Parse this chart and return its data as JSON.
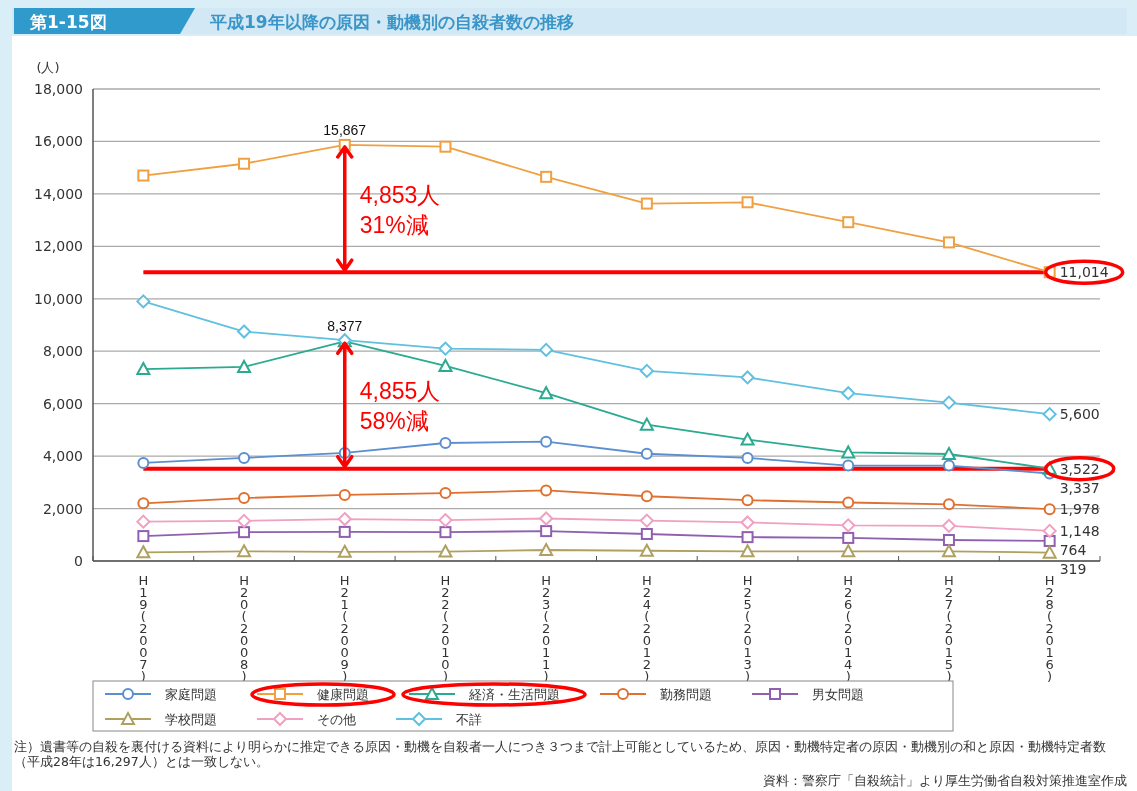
{
  "chart_data": {
    "type": "line",
    "title": "平成19年以降の原因・動機別の自殺者数の推移",
    "ylabel": "(人)",
    "categories": [
      "H19(2007)",
      "H20(2008)",
      "H21(2009)",
      "H22(2010)",
      "H23(2011)",
      "H24(2012)",
      "H25(2013)",
      "H26(2014)",
      "H27(2015)",
      "H28(2016)"
    ],
    "ylim": [
      0,
      18000
    ],
    "yticks": [
      {
        "value": 0,
        "label": "0"
      },
      {
        "value": 2000,
        "label": "2,000"
      },
      {
        "value": 4000,
        "label": "4,000"
      },
      {
        "value": 6000,
        "label": "6,000"
      },
      {
        "value": 8000,
        "label": "8,000"
      },
      {
        "value": 10000,
        "label": "10,000"
      },
      {
        "value": 12000,
        "label": "12,000"
      },
      {
        "value": 14000,
        "label": "14,000"
      },
      {
        "value": 16000,
        "label": "16,000"
      },
      {
        "value": 18000,
        "label": "18,000"
      }
    ],
    "grid": "y",
    "legend": "bottom",
    "line_style": "solid",
    "series": [
      {
        "name": "家庭問題",
        "color": "#5b8fd0",
        "marker": "circle",
        "values": [
          3740,
          3930,
          4120,
          4500,
          4550,
          4090,
          3930,
          3640,
          3640,
          3337
        ],
        "value_labels": [
          null,
          null,
          null,
          null,
          null,
          null,
          null,
          null,
          null,
          "3,337"
        ]
      },
      {
        "name": "健康問題",
        "color": "#f0a040",
        "marker": "square",
        "values": [
          14700,
          15150,
          15867,
          15800,
          14650,
          13630,
          13680,
          12920,
          12150,
          11014
        ],
        "value_labels": [
          null,
          null,
          "15,867",
          null,
          null,
          null,
          null,
          null,
          null,
          "11,014"
        ]
      },
      {
        "name": "経済・生活問題",
        "color": "#2aaa90",
        "marker": "triangle",
        "values": [
          7320,
          7400,
          8377,
          7440,
          6400,
          5200,
          4630,
          4140,
          4080,
          3522
        ],
        "value_labels": [
          null,
          null,
          "8,377",
          null,
          null,
          null,
          null,
          null,
          null,
          "3,522"
        ]
      },
      {
        "name": "勤務問題",
        "color": "#e07030",
        "marker": "circle",
        "values": [
          2200,
          2400,
          2520,
          2590,
          2690,
          2470,
          2320,
          2230,
          2160,
          1978
        ],
        "value_labels": [
          null,
          null,
          null,
          null,
          null,
          null,
          null,
          null,
          null,
          "1,978"
        ]
      },
      {
        "name": "男女問題",
        "color": "#9060b0",
        "marker": "square",
        "values": [
          950,
          1100,
          1110,
          1100,
          1140,
          1030,
          910,
          880,
          800,
          764
        ],
        "value_labels": [
          null,
          null,
          null,
          null,
          null,
          null,
          null,
          null,
          null,
          "764"
        ]
      },
      {
        "name": "学校問題",
        "color": "#b0a060",
        "marker": "triangle",
        "values": [
          330,
          370,
          350,
          360,
          420,
          390,
          370,
          370,
          370,
          319
        ],
        "value_labels": [
          null,
          null,
          null,
          null,
          null,
          null,
          null,
          null,
          null,
          "319"
        ]
      },
      {
        "name": "その他",
        "color": "#f0a0c0",
        "marker": "diamond",
        "values": [
          1500,
          1530,
          1600,
          1560,
          1620,
          1540,
          1470,
          1360,
          1340,
          1148
        ],
        "value_labels": [
          null,
          null,
          null,
          null,
          null,
          null,
          null,
          null,
          null,
          "1,148"
        ]
      },
      {
        "name": "不詳",
        "color": "#60c0e0",
        "marker": "diamond",
        "values": [
          9900,
          8750,
          8420,
          8100,
          8050,
          7250,
          7000,
          6400,
          6040,
          5600
        ],
        "value_labels": [
          null,
          null,
          null,
          null,
          null,
          null,
          null,
          null,
          null,
          "5,600"
        ]
      }
    ],
    "ref_lines": [
      {
        "axis": "y",
        "value": 11014,
        "color": "#ff0000"
      },
      {
        "axis": "y",
        "value": 3522,
        "color": "#ff0000"
      }
    ],
    "annotations": [
      "第1-15図",
      "4,853人\n31%減",
      "4,855人\n58%減",
      "注）遺書等の自殺を裏付ける資料により明らかに推定できる原因・動機を自殺者一人につき３つまで計上可能としているため、原因・動機特定者の原因・動機別の和と原因・動機特定者数（平成28年は16,297人）とは一致しない。",
      "資料：警察庁「自殺統計」より厚生労働省自殺対策推進室作成"
    ]
  }
}
